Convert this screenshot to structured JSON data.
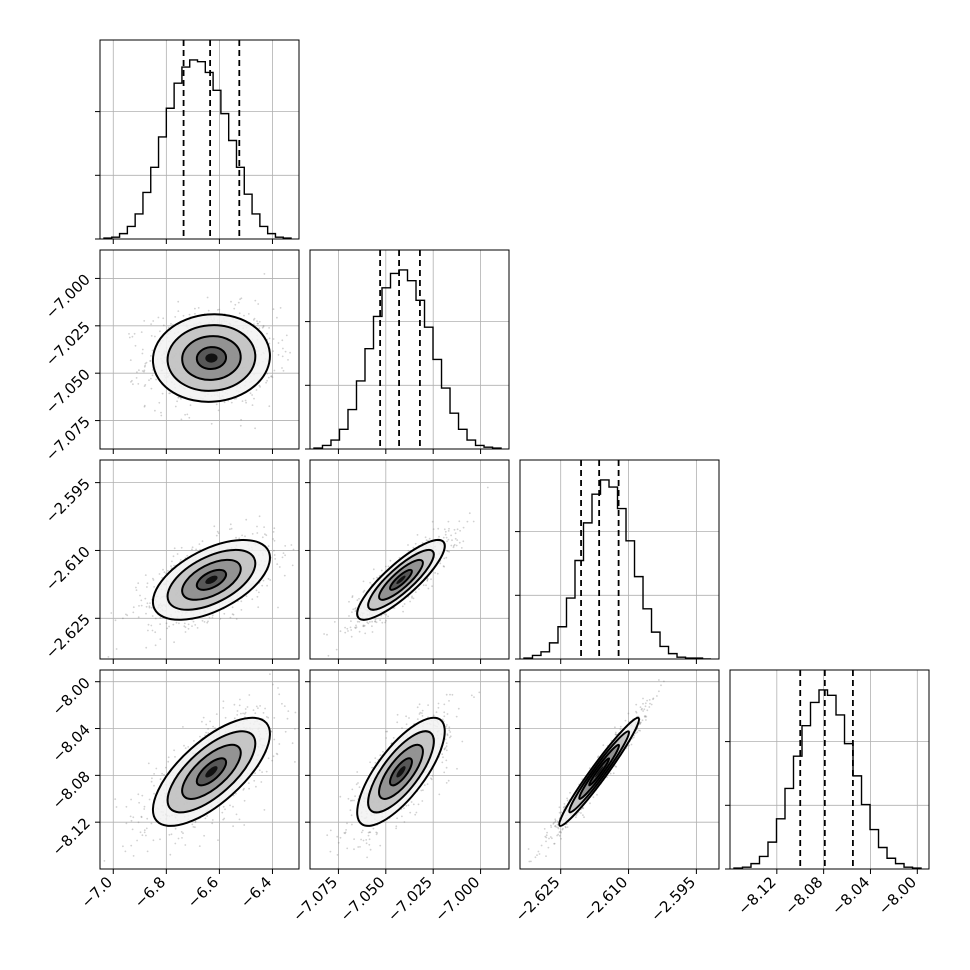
{
  "chart_data": {
    "type": "corner",
    "params": [
      {
        "mean": -6.63,
        "sigma": 0.105,
        "range": [
          -7.05,
          -6.3
        ],
        "ticks": [
          -7.0,
          -6.8,
          -6.6,
          -6.4
        ],
        "tick_labels": [
          "−7.0",
          "−6.8",
          "−6.6",
          "−6.4"
        ],
        "quantiles": [
          -6.735,
          -6.635,
          -6.525
        ],
        "hist": [
          0.005,
          0.01,
          0.03,
          0.07,
          0.14,
          0.26,
          0.4,
          0.57,
          0.73,
          0.87,
          0.96,
          1.0,
          0.99,
          0.93,
          0.83,
          0.7,
          0.55,
          0.4,
          0.25,
          0.14,
          0.07,
          0.03,
          0.01,
          0.005
        ]
      },
      {
        "mean": -7.042,
        "sigma": 0.011,
        "range": [
          -7.09,
          -6.985
        ],
        "ticks": [
          -7.075,
          -7.05,
          -7.025,
          -7.0
        ],
        "tick_labels": [
          "−7.075",
          "−7.050",
          "−7.025",
          "−7.000"
        ],
        "quantiles": [
          -7.053,
          -7.043,
          -7.032
        ],
        "hist": [
          0.005,
          0.02,
          0.05,
          0.11,
          0.22,
          0.38,
          0.56,
          0.74,
          0.9,
          0.98,
          1.0,
          0.94,
          0.83,
          0.68,
          0.5,
          0.34,
          0.2,
          0.11,
          0.05,
          0.02,
          0.01,
          0.005
        ]
      },
      {
        "mean": -2.6165,
        "sigma": 0.0042,
        "range": [
          -2.634,
          -2.59
        ],
        "ticks": [
          -2.625,
          -2.61,
          -2.595
        ],
        "tick_labels": [
          "−2.625",
          "−2.610",
          "−2.595"
        ],
        "quantiles": [
          -2.6205,
          -2.6165,
          -2.6122
        ],
        "hist": [
          0.005,
          0.02,
          0.04,
          0.09,
          0.18,
          0.34,
          0.55,
          0.76,
          0.92,
          1.0,
          0.96,
          0.84,
          0.66,
          0.46,
          0.28,
          0.15,
          0.07,
          0.03,
          0.01,
          0.005,
          0.005,
          0.0
        ]
      },
      {
        "mean": -8.077,
        "sigma": 0.022,
        "range": [
          -8.16,
          -7.99
        ],
        "ticks": [
          -8.12,
          -8.08,
          -8.04,
          -8.0
        ],
        "tick_labels": [
          "−8.12",
          "−8.08",
          "−8.04",
          "−8.00"
        ],
        "quantiles": [
          -8.1,
          -8.079,
          -8.055
        ],
        "hist": [
          0.005,
          0.01,
          0.03,
          0.07,
          0.15,
          0.28,
          0.45,
          0.63,
          0.8,
          0.93,
          1.0,
          0.97,
          0.86,
          0.7,
          0.52,
          0.36,
          0.22,
          0.12,
          0.06,
          0.03,
          0.01,
          0.005
        ]
      }
    ],
    "correlations": [
      [
        1.0,
        0.05,
        0.55,
        0.7
      ],
      [
        0.05,
        1.0,
        0.85,
        0.75
      ],
      [
        0.55,
        0.85,
        1.0,
        0.97
      ],
      [
        0.7,
        0.75,
        0.97,
        1.0
      ]
    ],
    "contour_sigma_levels": [
      0.5,
      1.0,
      1.5,
      2.0
    ],
    "y_tick_params": {
      "row": [
        1,
        2,
        3
      ]
    },
    "grid": true
  }
}
